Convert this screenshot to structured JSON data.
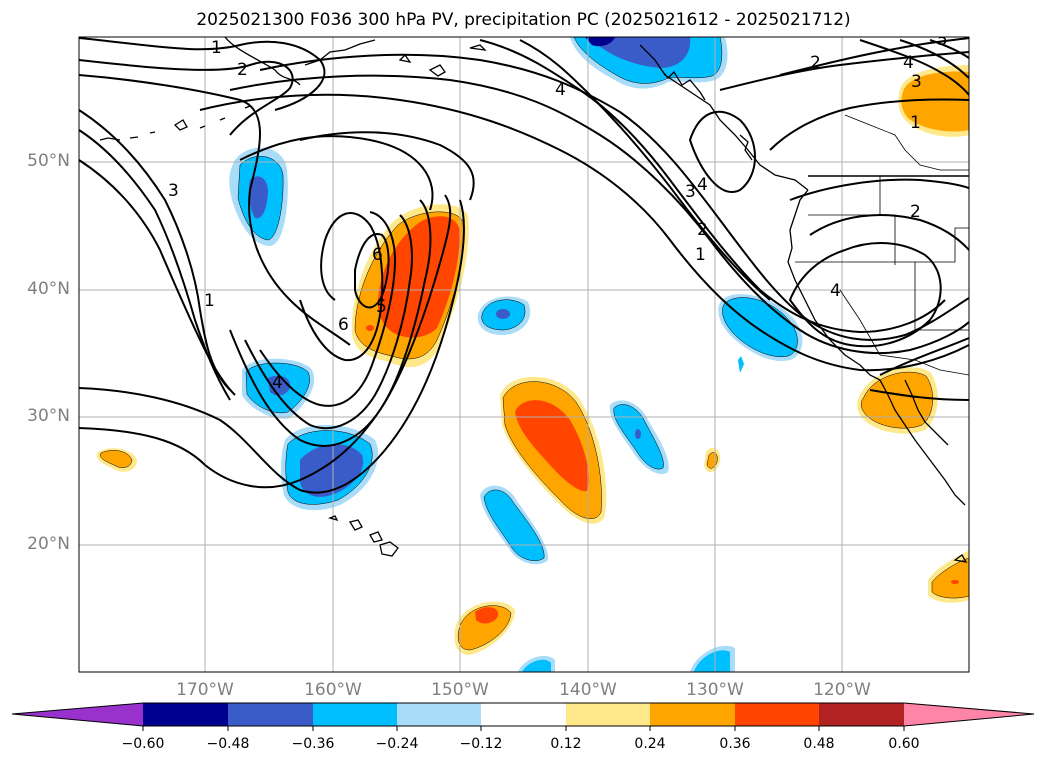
{
  "title": "2025021300 F036 300 hPa PV, precipitation PC (2025021612 - 2025021712)",
  "lat_labels": [
    "50°N",
    "40°N",
    "30°N",
    "20°N"
  ],
  "lon_labels": [
    "170°W",
    "160°W",
    "150°W",
    "140°W",
    "130°W",
    "120°W"
  ],
  "contour_labels": [
    "1",
    "2",
    "3",
    "4",
    "5",
    "6"
  ],
  "colorbar": {
    "ticks": [
      "−0.60",
      "−0.48",
      "−0.36",
      "−0.24",
      "−0.12",
      "0.12",
      "0.24",
      "0.36",
      "0.48",
      "0.60"
    ],
    "colors": {
      "below": "#9932cc",
      "neg060": "#000090",
      "neg048": "#3a5cc8",
      "neg036": "#00bfff",
      "neg024": "#a8dcf8",
      "neutral": "#ffffff",
      "pos012": "#ffe88a",
      "pos024": "#ffa500",
      "pos036": "#ff4500",
      "pos048": "#b22222",
      "above": "#ff85a8"
    }
  }
}
